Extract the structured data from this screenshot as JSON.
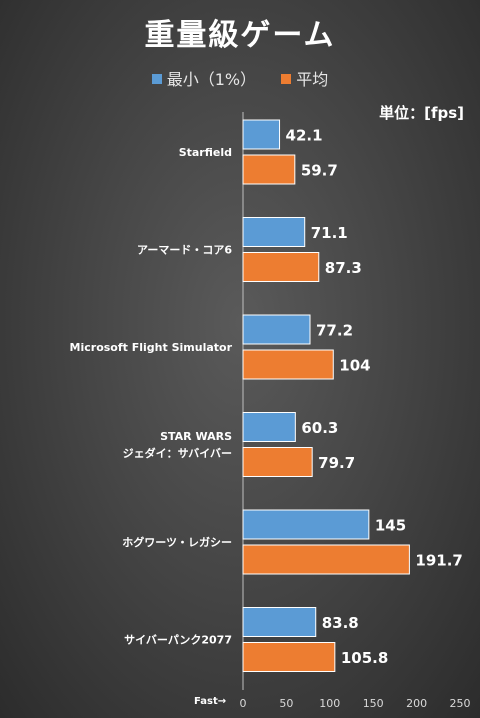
{
  "chart_data": {
    "type": "bar",
    "orientation": "horizontal",
    "title": "重量級ゲーム",
    "unit_label": "単位：[fps]",
    "axis_note": "Fast→",
    "categories": [
      [
        "Starfield"
      ],
      [
        "アーマード・コア6"
      ],
      [
        "Microsoft Flight Simulator"
      ],
      [
        "STAR WARS",
        "ジェダイ：サバイバー"
      ],
      [
        "ホグワーツ・レガシー"
      ],
      [
        "サイバーパンク2077"
      ]
    ],
    "series": [
      {
        "name": "最小（1%）",
        "color": "#5B9BD5",
        "values": [
          42.1,
          71.1,
          77.2,
          60.3,
          145,
          83.8
        ]
      },
      {
        "name": "平均",
        "color": "#ED7D31",
        "values": [
          59.7,
          87.3,
          104,
          79.7,
          191.7,
          105.8
        ]
      }
    ],
    "value_labels": [
      [
        "42.1",
        "71.1",
        "77.2",
        "60.3",
        "145",
        "83.8"
      ],
      [
        "59.7",
        "87.3",
        "104",
        "79.7",
        "191.7",
        "105.8"
      ]
    ],
    "xlim": [
      0,
      250
    ],
    "xticks": [
      0,
      50,
      100,
      150,
      200,
      250
    ],
    "grid": false,
    "legend_position": "top"
  }
}
